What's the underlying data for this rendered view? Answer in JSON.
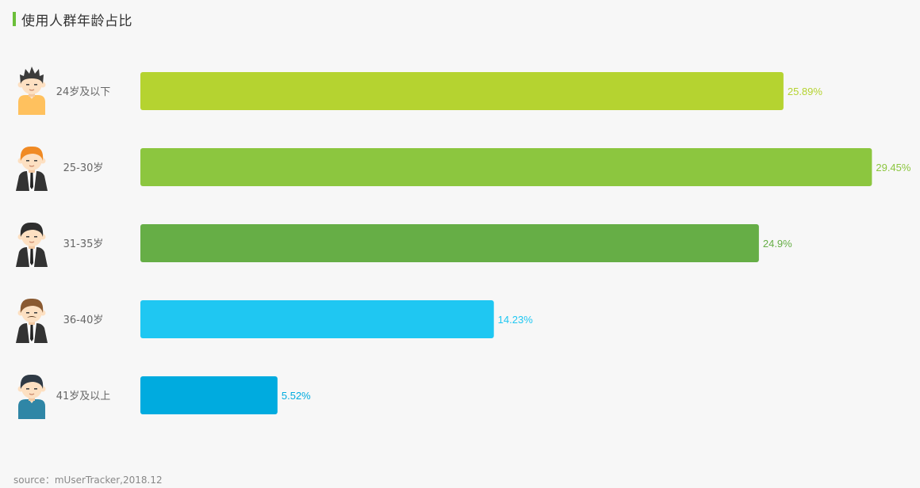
{
  "title": "使用人群年龄占比",
  "source": "source：mUserTracker,2018.12",
  "chart_data": {
    "type": "bar",
    "orientation": "horizontal",
    "categories": [
      "24岁及以下",
      "25-30岁",
      "31-35岁",
      "36-40岁",
      "41岁及以上"
    ],
    "values": [
      25.89,
      29.45,
      24.9,
      14.23,
      5.52
    ],
    "value_labels": [
      "25.89%",
      "29.45%",
      "24.9%",
      "14.23%",
      "5.52%"
    ],
    "colors": [
      "#b5d330",
      "#8cc63f",
      "#66ae46",
      "#1fc7f2",
      "#00abdf"
    ],
    "icons": [
      "young-man-yellow-shirt-icon",
      "orange-hair-man-suit-icon",
      "businessman-suit-icon",
      "mustache-man-suit-icon",
      "older-man-blue-shirt-icon"
    ],
    "unit": "%"
  }
}
